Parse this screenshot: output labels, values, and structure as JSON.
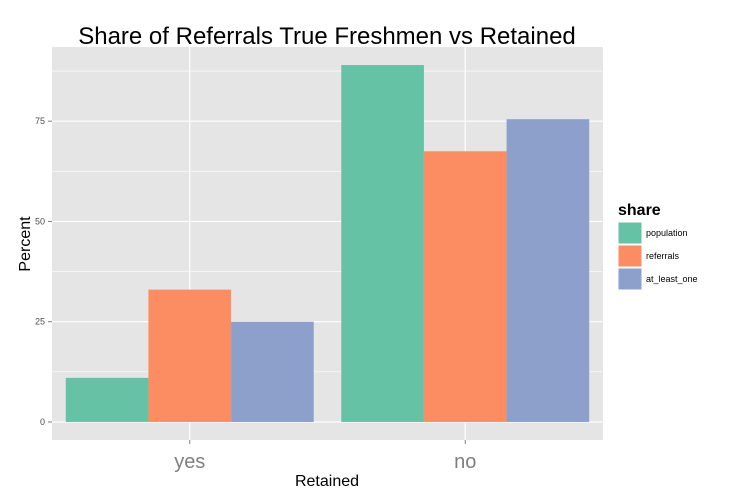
{
  "chart_data": {
    "type": "bar",
    "title": "Share of Referrals True Freshmen vs Retained",
    "xlabel": "Retained",
    "ylabel": "Percent",
    "categories": [
      "yes",
      "no"
    ],
    "series": [
      {
        "name": "population",
        "values": [
          11,
          89
        ],
        "color": "#66c2a5"
      },
      {
        "name": "referrals",
        "values": [
          33,
          67.5
        ],
        "color": "#fc8d62"
      },
      {
        "name": "at_least_one",
        "values": [
          25,
          75.5
        ],
        "color": "#8da0cb"
      }
    ],
    "yticks": [
      0,
      25,
      50,
      75
    ],
    "ylim": [
      -4.5,
      93.5
    ],
    "legend": {
      "title": "share",
      "placement": "right"
    },
    "grid": true,
    "panel_background": "#e5e5e5",
    "grid_color": "#ffffff"
  }
}
